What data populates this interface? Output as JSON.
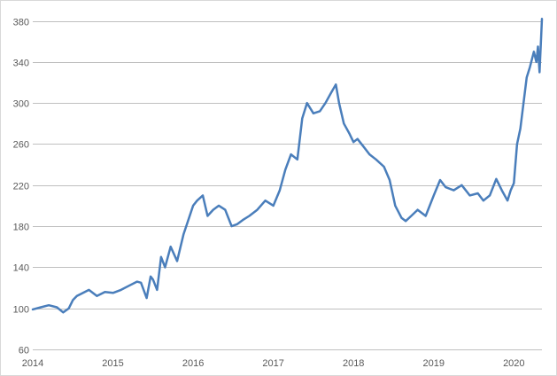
{
  "chart_data": {
    "type": "line",
    "title": "",
    "xlabel": "",
    "ylabel": "",
    "xlim": [
      2014.0,
      2020.35
    ],
    "ylim": [
      60,
      390
    ],
    "x_ticks": [
      2014,
      2015,
      2016,
      2017,
      2018,
      2019,
      2020
    ],
    "x_tick_labels": [
      "2014",
      "2015",
      "2016",
      "2017",
      "2018",
      "2019",
      "2020"
    ],
    "y_ticks": [
      60,
      100,
      140,
      180,
      220,
      260,
      300,
      340,
      380
    ],
    "y_tick_labels": [
      "60",
      "100",
      "140",
      "180",
      "220",
      "260",
      "300",
      "340",
      "380"
    ],
    "grid": "horizontal",
    "legend": "none",
    "colors": {
      "series": "#4a7ebb",
      "grid": "#bfbfbf",
      "text": "#595959"
    },
    "series": [
      {
        "x": [
          2014.0,
          2014.1,
          2014.2,
          2014.3,
          2014.38,
          2014.45,
          2014.5,
          2014.55,
          2014.6,
          2014.7,
          2014.8,
          2014.9,
          2015.0,
          2015.1,
          2015.2,
          2015.3,
          2015.35,
          2015.42,
          2015.47,
          2015.5,
          2015.55,
          2015.6,
          2015.65,
          2015.72,
          2015.8,
          2015.88,
          2016.0,
          2016.05,
          2016.12,
          2016.18,
          2016.25,
          2016.32,
          2016.4,
          2016.48,
          2016.55,
          2016.62,
          2016.7,
          2016.8,
          2016.9,
          2017.0,
          2017.08,
          2017.15,
          2017.22,
          2017.3,
          2017.36,
          2017.42,
          2017.5,
          2017.58,
          2017.65,
          2017.72,
          2017.78,
          2017.82,
          2017.88,
          2017.95,
          2018.0,
          2018.05,
          2018.12,
          2018.2,
          2018.28,
          2018.38,
          2018.45,
          2018.52,
          2018.6,
          2018.65,
          2018.72,
          2018.8,
          2018.9,
          2019.0,
          2019.08,
          2019.15,
          2019.25,
          2019.35,
          2019.45,
          2019.55,
          2019.62,
          2019.7,
          2019.78,
          2019.85,
          2019.92,
          2019.96,
          2020.0,
          2020.04,
          2020.08,
          2020.12,
          2020.16,
          2020.2,
          2020.25,
          2020.28,
          2020.3,
          2020.32,
          2020.35
        ],
        "y": [
          99,
          101,
          103,
          101,
          96,
          100,
          108,
          112,
          114,
          118,
          112,
          116,
          115,
          118,
          122,
          126,
          125,
          110,
          131,
          128,
          118,
          150,
          140,
          160,
          146,
          172,
          200,
          205,
          210,
          190,
          196,
          200,
          196,
          180,
          182,
          186,
          190,
          196,
          205,
          200,
          215,
          235,
          250,
          245,
          285,
          300,
          290,
          292,
          300,
          310,
          318,
          300,
          280,
          270,
          262,
          265,
          258,
          250,
          245,
          238,
          225,
          200,
          188,
          185,
          190,
          196,
          190,
          210,
          225,
          218,
          215,
          220,
          210,
          212,
          205,
          210,
          226,
          215,
          205,
          215,
          222,
          260,
          275,
          300,
          325,
          335,
          350,
          340,
          355,
          330,
          382
        ]
      }
    ]
  }
}
